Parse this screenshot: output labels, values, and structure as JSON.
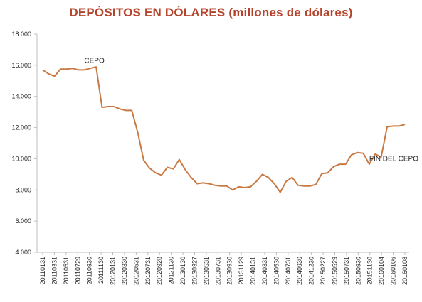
{
  "chart_data": {
    "type": "line",
    "title": "DEPÓSITOS EN DÓLARES (millones de dólares)",
    "xlabel": "",
    "ylabel": "",
    "ylim": [
      4000,
      18000
    ],
    "y_ticks": [
      "4.000",
      "6.000",
      "8.000",
      "10.000",
      "12.000",
      "14.000",
      "16.000",
      "18.000"
    ],
    "y_tick_values": [
      4000,
      6000,
      8000,
      10000,
      12000,
      14000,
      16000,
      18000
    ],
    "x_tick_labels": [
      "20110131",
      "20110331",
      "20110531",
      "20110729",
      "20110930",
      "20111130",
      "20120131",
      "20120330",
      "20120531",
      "20120731",
      "20120928",
      "20121130",
      "20130130",
      "20130327",
      "20130531",
      "20130731",
      "20130930",
      "20131129",
      "20140131",
      "20140331",
      "20140530",
      "20140731",
      "20140930",
      "20141230",
      "20150227",
      "20150529",
      "20150731",
      "20150930",
      "20151130",
      "20160104",
      "20160106",
      "20160108"
    ],
    "grid": false,
    "legend": "none",
    "series_color": "#c97a44",
    "series": [
      {
        "values": [
          15700,
          15450,
          15300,
          15750,
          15750,
          15800,
          15700,
          15700,
          15800,
          15900,
          13300,
          13350,
          13350,
          13200,
          13100,
          13100,
          11700,
          9900,
          9400,
          9100,
          8950,
          9450,
          9350,
          9950,
          9300,
          8800,
          8400,
          8450,
          8400,
          8300,
          8250,
          8250,
          8000,
          8200,
          8150,
          8200,
          8550,
          9000,
          8800,
          8400,
          7850,
          8550,
          8800,
          8300,
          8250,
          8250,
          8350,
          9050,
          9100,
          9500,
          9650,
          9650,
          10250,
          10400,
          10350,
          9650,
          10300,
          10100,
          12050,
          12100,
          12100,
          12200
        ]
      }
    ],
    "annotations": [
      {
        "text": "CEPO",
        "x_index": 7,
        "y": 16150
      },
      {
        "text": "FIN DEL CEPO",
        "x_index": 55,
        "y": 9850
      }
    ]
  }
}
